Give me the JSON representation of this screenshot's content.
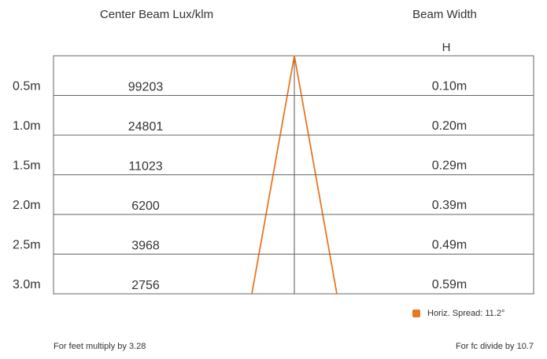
{
  "header": {
    "left": "Center Beam Lux/klm",
    "right": "Beam Width",
    "sub": "H"
  },
  "rows": [
    {
      "distance": "0.5m",
      "lux": "99203",
      "width": "0.10m"
    },
    {
      "distance": "1.0m",
      "lux": "24801",
      "width": "0.20m"
    },
    {
      "distance": "1.5m",
      "lux": "11023",
      "width": "0.29m"
    },
    {
      "distance": "2.0m",
      "lux": "6200",
      "width": "0.39m"
    },
    {
      "distance": "2.5m",
      "lux": "3968",
      "width": "0.49m"
    },
    {
      "distance": "3.0m",
      "lux": "2756",
      "width": "0.59m"
    }
  ],
  "legend": "Horiz. Spread: 11.2°",
  "footer": {
    "left": "For feet multiply by 3.28",
    "right": "For fc divide by 10.7"
  }
}
